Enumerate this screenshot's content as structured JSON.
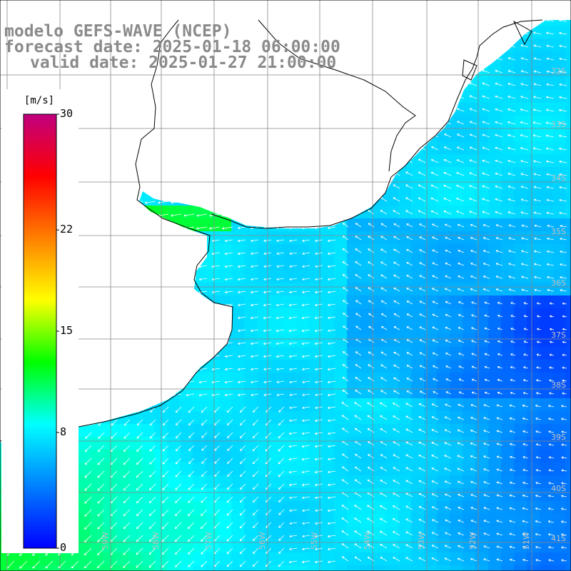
{
  "title": {
    "model": "modelo GEFS-WAVE (NCEP)",
    "forecast": "forecast date: 2025-01-18 06:00:00",
    "valid": "valid date: 2025-01-27 21:00:00"
  },
  "colorbar": {
    "unit": "[m/s]",
    "min": 0,
    "max": 30,
    "ticks": [
      {
        "value": 30,
        "label": "30"
      },
      {
        "value": 22,
        "label": "22"
      },
      {
        "value": 15,
        "label": "15"
      },
      {
        "value": 8,
        "label": "8"
      },
      {
        "value": 0,
        "label": "0"
      }
    ],
    "colors": [
      "#0000ff",
      "#0080ff",
      "#00ffff",
      "#00ff00",
      "#ffff00",
      "#ff8000",
      "#ff0000",
      "#c00080"
    ]
  },
  "lat_labels": [
    "32S",
    "33S",
    "34S",
    "35S",
    "36S",
    "37S",
    "38S",
    "39S",
    "40S",
    "41S"
  ],
  "lon_labels": [
    "60W",
    "59W",
    "58W",
    "57W",
    "56W",
    "55W",
    "54W",
    "53W",
    "52W",
    "51W"
  ],
  "wind": {
    "field": "wind speed",
    "land_color": "#ffffff",
    "grid_color": "#888888",
    "coast_color": "#000000"
  }
}
